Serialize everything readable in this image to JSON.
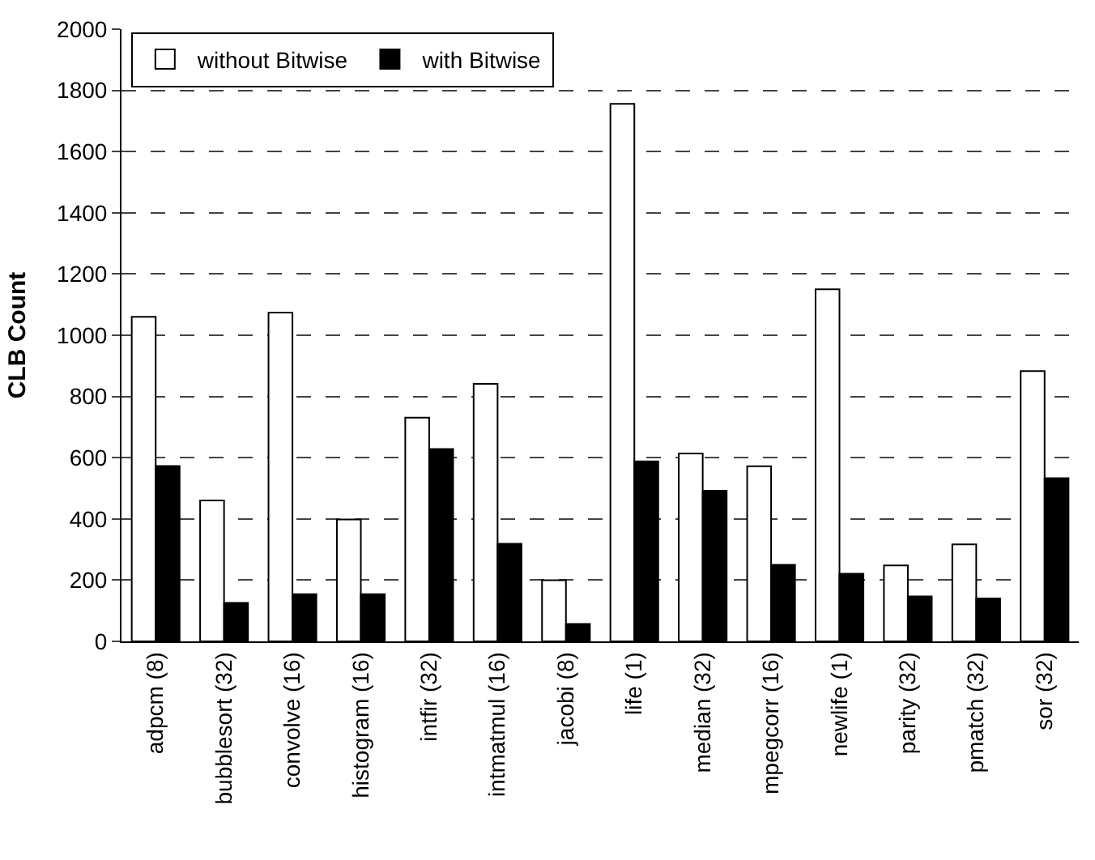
{
  "chart_data": {
    "type": "bar",
    "ylabel": "CLB Count",
    "categories": [
      "adpcm (8)",
      "bubblesort (32)",
      "convolve (16)",
      "histogram (16)",
      "intfir (32)",
      "intmatmul (16)",
      "jacobi (8)",
      "life (1)",
      "median (32)",
      "mpegcorr (16)",
      "newlife (1)",
      "parity (32)",
      "pmatch (32)",
      "sor (32)"
    ],
    "series": [
      {
        "name": "without Bitwise",
        "color": "#ffffff",
        "values": [
          1060,
          460,
          1074,
          398,
          731,
          841,
          200,
          1756,
          614,
          572,
          1150,
          248,
          317,
          883
        ]
      },
      {
        "name": "with Bitwise",
        "color": "#000000",
        "values": [
          573,
          126,
          154,
          154,
          628,
          319,
          57,
          588,
          492,
          250,
          221,
          147,
          140,
          533
        ]
      }
    ],
    "ylim": [
      0,
      2000
    ],
    "yticks": [
      0,
      200,
      400,
      600,
      800,
      1000,
      1200,
      1400,
      1600,
      1800,
      2000
    ],
    "grid": "y",
    "legend": "top left"
  }
}
